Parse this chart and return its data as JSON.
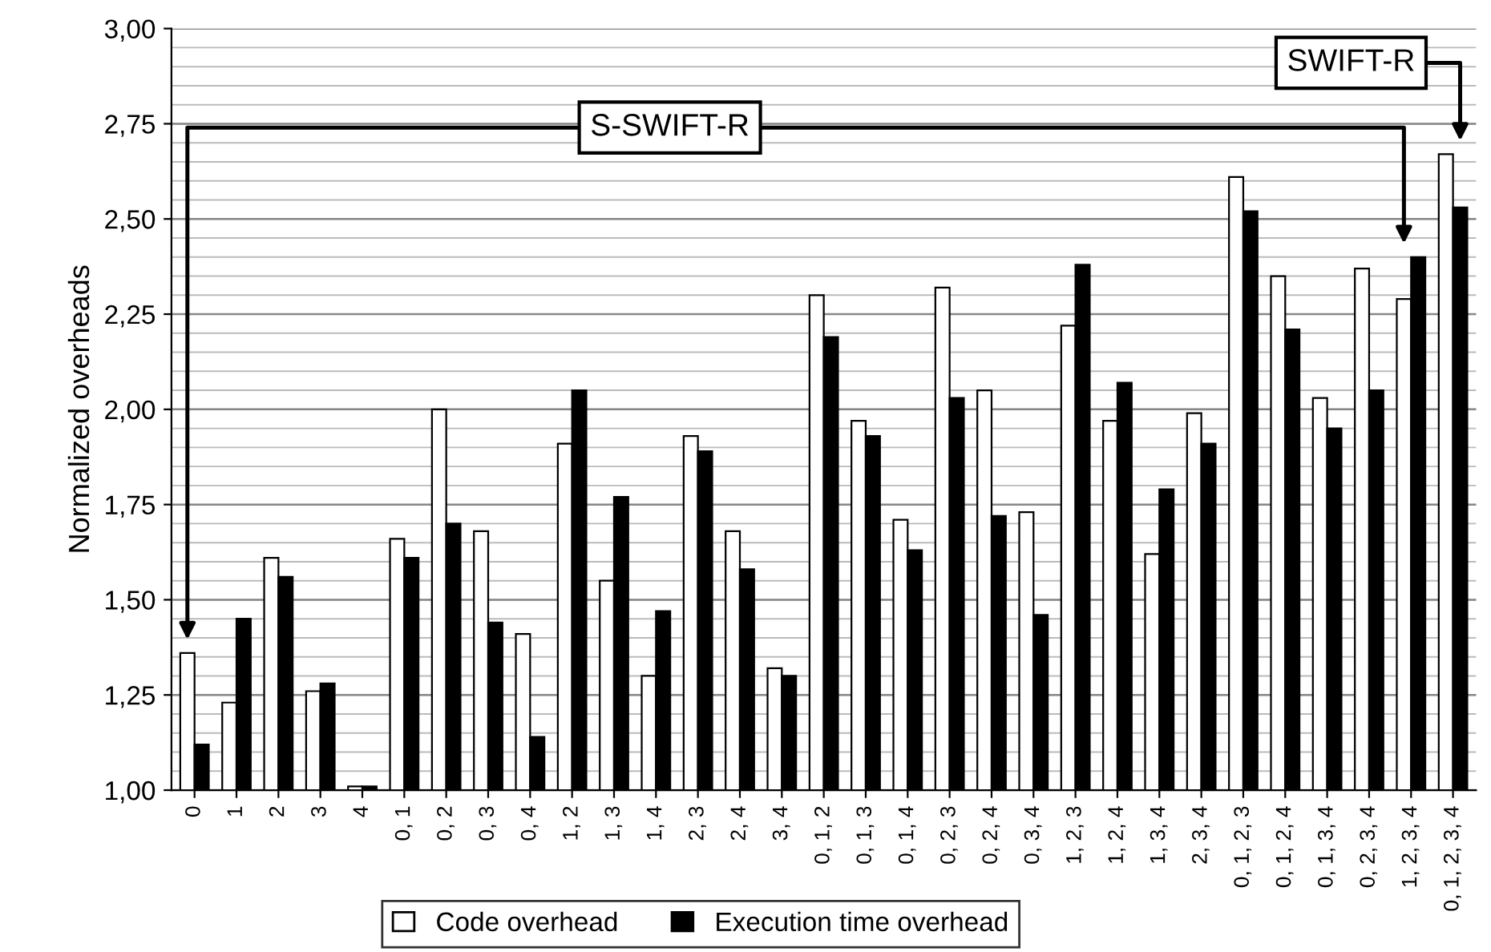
{
  "chart_data": {
    "type": "bar",
    "ylabel": "Normalized overheads",
    "categories": [
      "0",
      "1",
      "2",
      "3",
      "4",
      "0, 1",
      "0, 2",
      "0, 3",
      "0, 4",
      "1, 2",
      "1, 3",
      "1, 4",
      "2, 3",
      "2, 4",
      "3, 4",
      "0, 1, 2",
      "0, 1, 3",
      "0, 1, 4",
      "0, 2, 3",
      "0, 2, 4",
      "0, 3, 4",
      "1, 2, 3",
      "1, 2, 4",
      "1, 3, 4",
      "2, 3, 4",
      "0, 1, 2, 3",
      "0, 1, 2, 4",
      "0, 1, 3, 4",
      "0, 2, 3, 4",
      "1, 2, 3, 4",
      "0, 1, 2, 3, 4"
    ],
    "series": [
      {
        "name": "Code overhead",
        "color": "#ffffff",
        "values": [
          1.36,
          1.23,
          1.61,
          1.26,
          1.01,
          1.66,
          2.0,
          1.68,
          1.41,
          1.91,
          1.55,
          1.3,
          1.93,
          1.68,
          1.32,
          2.3,
          1.97,
          1.71,
          2.32,
          2.05,
          1.73,
          2.22,
          1.97,
          1.62,
          1.99,
          2.61,
          2.35,
          2.03,
          2.37,
          2.29,
          2.67
        ]
      },
      {
        "name": "Execution time overhead",
        "color": "#000000",
        "values": [
          1.12,
          1.45,
          1.56,
          1.28,
          1.01,
          1.61,
          1.7,
          1.44,
          1.14,
          2.05,
          1.77,
          1.47,
          1.89,
          1.58,
          1.3,
          2.19,
          1.93,
          1.63,
          2.03,
          1.72,
          1.46,
          2.38,
          2.07,
          1.79,
          1.91,
          2.52,
          2.21,
          1.95,
          2.05,
          2.4,
          2.53
        ]
      }
    ],
    "annotations": [
      "S-SWIFT-R",
      "SWIFT-R"
    ],
    "ylim": [
      1.0,
      3.0
    ],
    "yticks": [
      {
        "value": 1.0,
        "label": "1,00"
      },
      {
        "value": 1.25,
        "label": "1,25"
      },
      {
        "value": 1.5,
        "label": "1,50"
      },
      {
        "value": 1.75,
        "label": "1,75"
      },
      {
        "value": 2.0,
        "label": "2,00"
      },
      {
        "value": 2.25,
        "label": "2,25"
      },
      {
        "value": 2.5,
        "label": "2,50"
      },
      {
        "value": 2.75,
        "label": "2,75"
      },
      {
        "value": 3.0,
        "label": "3,00"
      }
    ],
    "grid": "y",
    "legend": "bottom"
  }
}
